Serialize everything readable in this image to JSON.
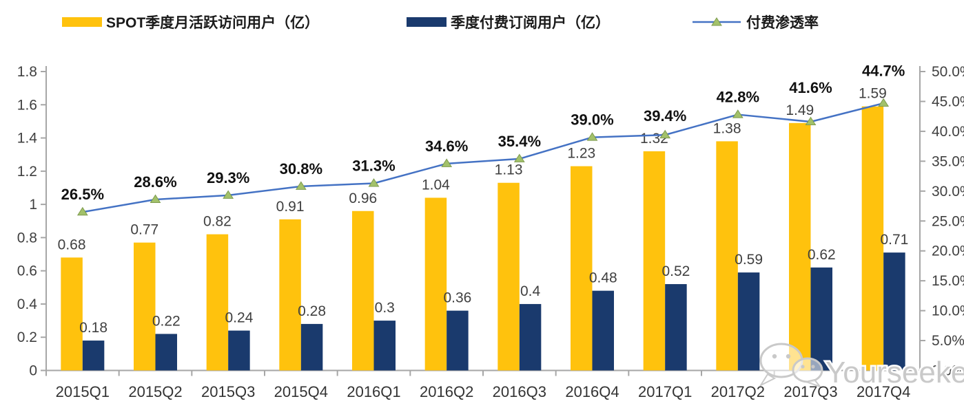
{
  "legend": {
    "items": [
      {
        "label": "SPOT季度月活跃访问用户（亿）",
        "type": "bar",
        "color": "#FFC20D"
      },
      {
        "label": "季度付费订阅用户（亿）",
        "type": "bar",
        "color": "#1A3A6D"
      },
      {
        "label": "付费渗透率",
        "type": "line",
        "color": "#4472C4",
        "marker_color": "#A2C16A"
      }
    ]
  },
  "chart_data": {
    "type": "bar+line",
    "categories": [
      "2015Q1",
      "2015Q2",
      "2015Q3",
      "2015Q4",
      "2016Q1",
      "2016Q2",
      "2016Q3",
      "2016Q4",
      "2017Q1",
      "2017Q2",
      "2017Q3",
      "2017Q4"
    ],
    "series": [
      {
        "name": "SPOT季度月活跃访问用户（亿）",
        "type": "bar",
        "axis": "left",
        "color": "#FFC20D",
        "values": [
          0.68,
          0.77,
          0.82,
          0.91,
          0.96,
          1.04,
          1.13,
          1.23,
          1.32,
          1.38,
          1.49,
          1.59
        ],
        "labels": [
          "0.68",
          "0.77",
          "0.82",
          "0.91",
          "0.96",
          "1.04",
          "1.13",
          "1.23",
          "1.32",
          "1.38",
          "1.49",
          "1.59"
        ]
      },
      {
        "name": "季度付费订阅用户（亿）",
        "type": "bar",
        "axis": "left",
        "color": "#1A3A6D",
        "values": [
          0.18,
          0.22,
          0.24,
          0.28,
          0.3,
          0.36,
          0.4,
          0.48,
          0.52,
          0.59,
          0.62,
          0.71
        ],
        "labels": [
          "0.18",
          "0.22",
          "0.24",
          "0.28",
          "0.3",
          "0.36",
          "0.4",
          "0.48",
          "0.52",
          "0.59",
          "0.62",
          "0.71"
        ]
      },
      {
        "name": "付费渗透率",
        "type": "line",
        "axis": "right",
        "color": "#4472C4",
        "marker": "triangle",
        "marker_color": "#A2C16A",
        "values": [
          26.5,
          28.6,
          29.3,
          30.8,
          31.3,
          34.6,
          35.4,
          39.0,
          39.4,
          42.8,
          41.6,
          44.7
        ],
        "labels": [
          "26.5%",
          "28.6%",
          "29.3%",
          "30.8%",
          "31.3%",
          "34.6%",
          "35.4%",
          "39.0%",
          "39.4%",
          "42.8%",
          "41.6%",
          "44.7%"
        ]
      }
    ],
    "left_axis": {
      "min": 0,
      "max": 1.8,
      "ticks": [
        "0",
        "0.2",
        "0.4",
        "0.6",
        "0.8",
        "1",
        "1.2",
        "1.4",
        "1.6",
        "1.8"
      ]
    },
    "right_axis": {
      "min": 0,
      "max": 50,
      "ticks": [
        "0.0%",
        "5.0%",
        "10.0%",
        "15.0%",
        "20.0%",
        "25.0%",
        "30.0%",
        "35.0%",
        "40.0%",
        "45.0%",
        "50.0%"
      ]
    },
    "grid": false,
    "legend_position": "top",
    "axis_color": "#A6A6A6",
    "label_color": "#404040",
    "pct_label_color": "#111111"
  },
  "watermark": {
    "text": "Yourseeker",
    "icon": "wechat-icon",
    "color": "#C9C9C9"
  }
}
